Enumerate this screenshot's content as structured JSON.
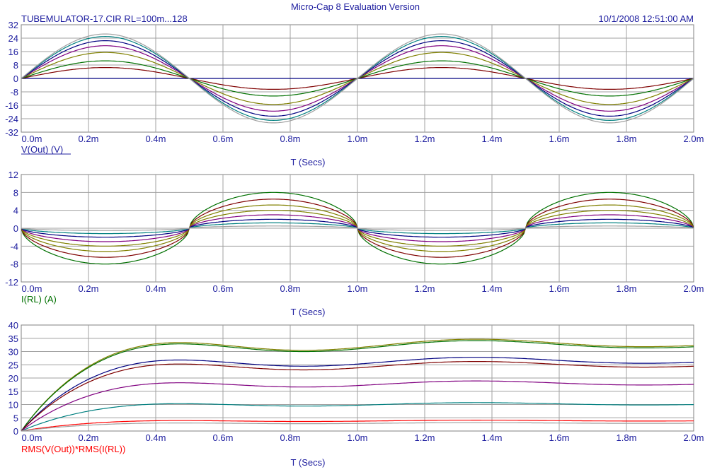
{
  "header": {
    "app_title": "Micro-Cap 8 Evaluation Version",
    "file_title": "TUBEMULATOR-17.CIR RL=100m...128",
    "timestamp": "10/1/2008 12:51:00 AM"
  },
  "colors": {
    "text": "#2020a0",
    "grid": "#a0a0a0",
    "frame": "#808080",
    "series": [
      "#7f0000",
      "#007000",
      "#808000",
      "#000080",
      "#800080",
      "#008080",
      "#a0a0a0",
      "#ff0000"
    ]
  },
  "chart_data": [
    {
      "type": "line",
      "title": "",
      "xlabel": "T (Secs)",
      "ylabel": "V(Out) (V)",
      "ylabel_color": "#2020a0",
      "x_range": [
        0,
        0.002
      ],
      "ylim": [
        -32,
        32
      ],
      "x_ticks": [
        "0.0m",
        "0.2m",
        "0.4m",
        "0.6m",
        "0.8m",
        "1.0m",
        "1.2m",
        "1.4m",
        "1.6m",
        "1.8m",
        "2.0m"
      ],
      "y_ticks": [
        "32",
        "24",
        "16",
        "8",
        "0",
        "-8",
        "-16",
        "-24",
        "-32"
      ],
      "grid": true,
      "waveform": "sine, 1 kHz",
      "series": [
        {
          "amplitude": 0,
          "color": "#000080"
        },
        {
          "amplitude": 6.5,
          "color": "#7f0000"
        },
        {
          "amplitude": 10.5,
          "color": "#007000"
        },
        {
          "amplitude": 15.5,
          "color": "#808000"
        },
        {
          "amplitude": 19.5,
          "color": "#800080"
        },
        {
          "amplitude": 22.5,
          "color": "#000080"
        },
        {
          "amplitude": 25,
          "color": "#008080"
        },
        {
          "amplitude": 26.5,
          "color": "#a0a0a0"
        }
      ]
    },
    {
      "type": "line",
      "title": "",
      "xlabel": "T (Secs)",
      "ylabel": "I(RL) (A)",
      "ylabel_color": "#007000",
      "x_range": [
        0,
        0.002
      ],
      "ylim": [
        -12,
        12
      ],
      "x_ticks": [
        "0.0m",
        "0.2m",
        "0.4m",
        "0.6m",
        "0.8m",
        "1.0m",
        "1.2m",
        "1.4m",
        "1.6m",
        "1.8m",
        "2.0m"
      ],
      "y_ticks": [
        "12",
        "8",
        "4",
        "0",
        "-4",
        "-8",
        "-12"
      ],
      "grid": true,
      "waveform": "inverted sine, flattened peaks",
      "series": [
        {
          "amplitude": 8,
          "color": "#007000"
        },
        {
          "amplitude": 6.5,
          "color": "#7f0000"
        },
        {
          "amplitude": 5.2,
          "color": "#808000"
        },
        {
          "amplitude": 4,
          "color": "#808000"
        },
        {
          "amplitude": 3,
          "color": "#800080"
        },
        {
          "amplitude": 2,
          "color": "#000080"
        },
        {
          "amplitude": 1.2,
          "color": "#008080"
        },
        {
          "amplitude": 0.5,
          "color": "#a0a0a0"
        }
      ]
    },
    {
      "type": "line",
      "title": "",
      "xlabel": "T (Secs)",
      "ylabel": "RMS(V(Out))*RMS(I(RL))",
      "ylabel_color": "#ff0000",
      "x_range": [
        0,
        0.002
      ],
      "ylim": [
        0,
        40
      ],
      "x_ticks": [
        "0.0m",
        "0.2m",
        "0.4m",
        "0.6m",
        "0.8m",
        "1.0m",
        "1.2m",
        "1.4m",
        "1.6m",
        "1.8m",
        "2.0m"
      ],
      "y_ticks": [
        "40",
        "35",
        "30",
        "25",
        "20",
        "15",
        "10",
        "5",
        "0"
      ],
      "grid": true,
      "waveform": "RMS power, damped settling",
      "series": [
        {
          "final": 33,
          "color": "#808000"
        },
        {
          "final": 32.5,
          "color": "#007000"
        },
        {
          "final": 26.5,
          "color": "#000080"
        },
        {
          "final": 25,
          "color": "#7f0000"
        },
        {
          "final": 18,
          "color": "#800080"
        },
        {
          "final": 10.2,
          "color": "#008080"
        },
        {
          "final": 3.9,
          "color": "#ff0000"
        },
        {
          "final": 3.0,
          "color": "#a0a0a0"
        }
      ]
    }
  ]
}
